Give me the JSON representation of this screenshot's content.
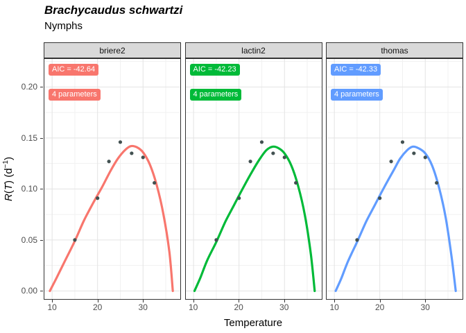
{
  "title": "Brachycaudus schwartzi",
  "subtitle": "Nymphs",
  "chart_data": {
    "type": "line+scatter, faceted (3 model fits)",
    "xlabel": "Temperature",
    "ylabel_plain": "R(T) (d⁻¹)",
    "ylabel_parts": {
      "r": "R",
      "open": "(",
      "t": "T",
      "close": ")",
      "unit": " (d",
      "sup": "−1",
      "unit_close": ")"
    },
    "axes": {
      "xlim": [
        8.3,
        38.2
      ],
      "ylim": [
        -0.0079,
        0.2275
      ],
      "x_ticks": [
        10,
        20,
        30
      ],
      "x_tick_labels": [
        "10",
        "20",
        "30"
      ],
      "x_minor": [
        15,
        25,
        35
      ],
      "y_ticks": [
        0.0,
        0.05,
        0.1,
        0.15,
        0.2
      ],
      "y_tick_labels": [
        "0.00",
        "0.05",
        "0.10",
        "0.15",
        "0.20"
      ],
      "y_minor": [
        0.025,
        0.075,
        0.125,
        0.175,
        0.225
      ],
      "grid": true,
      "legend": "none"
    },
    "points": {
      "temperature": [
        15,
        20,
        22.5,
        25,
        27.5,
        30,
        32.5
      ],
      "rate": [
        0.05,
        0.091,
        0.127,
        0.146,
        0.135,
        0.131,
        0.106
      ],
      "color": "#425151"
    },
    "facets": [
      {
        "label": "briere2",
        "color": "#F8766D",
        "annotations": [
          {
            "text": "AIC = -42.64",
            "y": 0.2175
          },
          {
            "text": "4 parameters",
            "y": 0.193
          }
        ],
        "curve": [
          [
            9.5,
            0
          ],
          [
            11,
            0.013
          ],
          [
            13,
            0.031
          ],
          [
            15,
            0.049
          ],
          [
            17,
            0.069
          ],
          [
            19,
            0.086
          ],
          [
            21,
            0.102
          ],
          [
            23,
            0.119
          ],
          [
            24.5,
            0.13
          ],
          [
            26,
            0.138
          ],
          [
            27.3,
            0.142
          ],
          [
            28.6,
            0.141
          ],
          [
            30,
            0.136
          ],
          [
            31.5,
            0.124
          ],
          [
            33,
            0.104
          ],
          [
            34.5,
            0.075
          ],
          [
            35.8,
            0.038
          ],
          [
            36.55,
            0
          ]
        ]
      },
      {
        "label": "lactin2",
        "color": "#00BA38",
        "annotations": [
          {
            "text": "AIC = -42.23",
            "y": 0.2175
          },
          {
            "text": "4 parameters",
            "y": 0.193
          }
        ],
        "curve": [
          [
            10.2,
            0
          ],
          [
            11.5,
            0.013
          ],
          [
            13,
            0.03
          ],
          [
            15,
            0.048
          ],
          [
            17,
            0.068
          ],
          [
            19,
            0.085
          ],
          [
            21,
            0.102
          ],
          [
            23,
            0.118
          ],
          [
            24.5,
            0.129
          ],
          [
            26,
            0.138
          ],
          [
            27.4,
            0.1415
          ],
          [
            28.7,
            0.14
          ],
          [
            30,
            0.135
          ],
          [
            31.5,
            0.123
          ],
          [
            33,
            0.103
          ],
          [
            34.5,
            0.074
          ],
          [
            35.8,
            0.036
          ],
          [
            36.65,
            0
          ]
        ]
      },
      {
        "label": "thomas",
        "color": "#619CFF",
        "annotations": [
          {
            "text": "AIC = -42.33",
            "y": 0.2175
          },
          {
            "text": "4 parameters",
            "y": 0.193
          }
        ],
        "curve": [
          [
            10.3,
            0
          ],
          [
            11.5,
            0.012
          ],
          [
            13,
            0.029
          ],
          [
            15,
            0.048
          ],
          [
            17,
            0.068
          ],
          [
            19,
            0.085
          ],
          [
            21,
            0.102
          ],
          [
            23,
            0.118
          ],
          [
            24.5,
            0.13
          ],
          [
            26,
            0.138
          ],
          [
            27.2,
            0.1415
          ],
          [
            28.5,
            0.14
          ],
          [
            30,
            0.135
          ],
          [
            31.5,
            0.123
          ],
          [
            33,
            0.102
          ],
          [
            34.5,
            0.072
          ],
          [
            35.8,
            0.033
          ],
          [
            36.7,
            0
          ]
        ]
      }
    ],
    "style": {
      "grid_major_color": "#E3E3E3",
      "grid_minor_color": "#F1F1F1",
      "panel_border_color": "#333333",
      "strip_bg": "#D9D9D9",
      "tick_label_color": "#4D4D4D",
      "curve_width": 3.2
    }
  }
}
